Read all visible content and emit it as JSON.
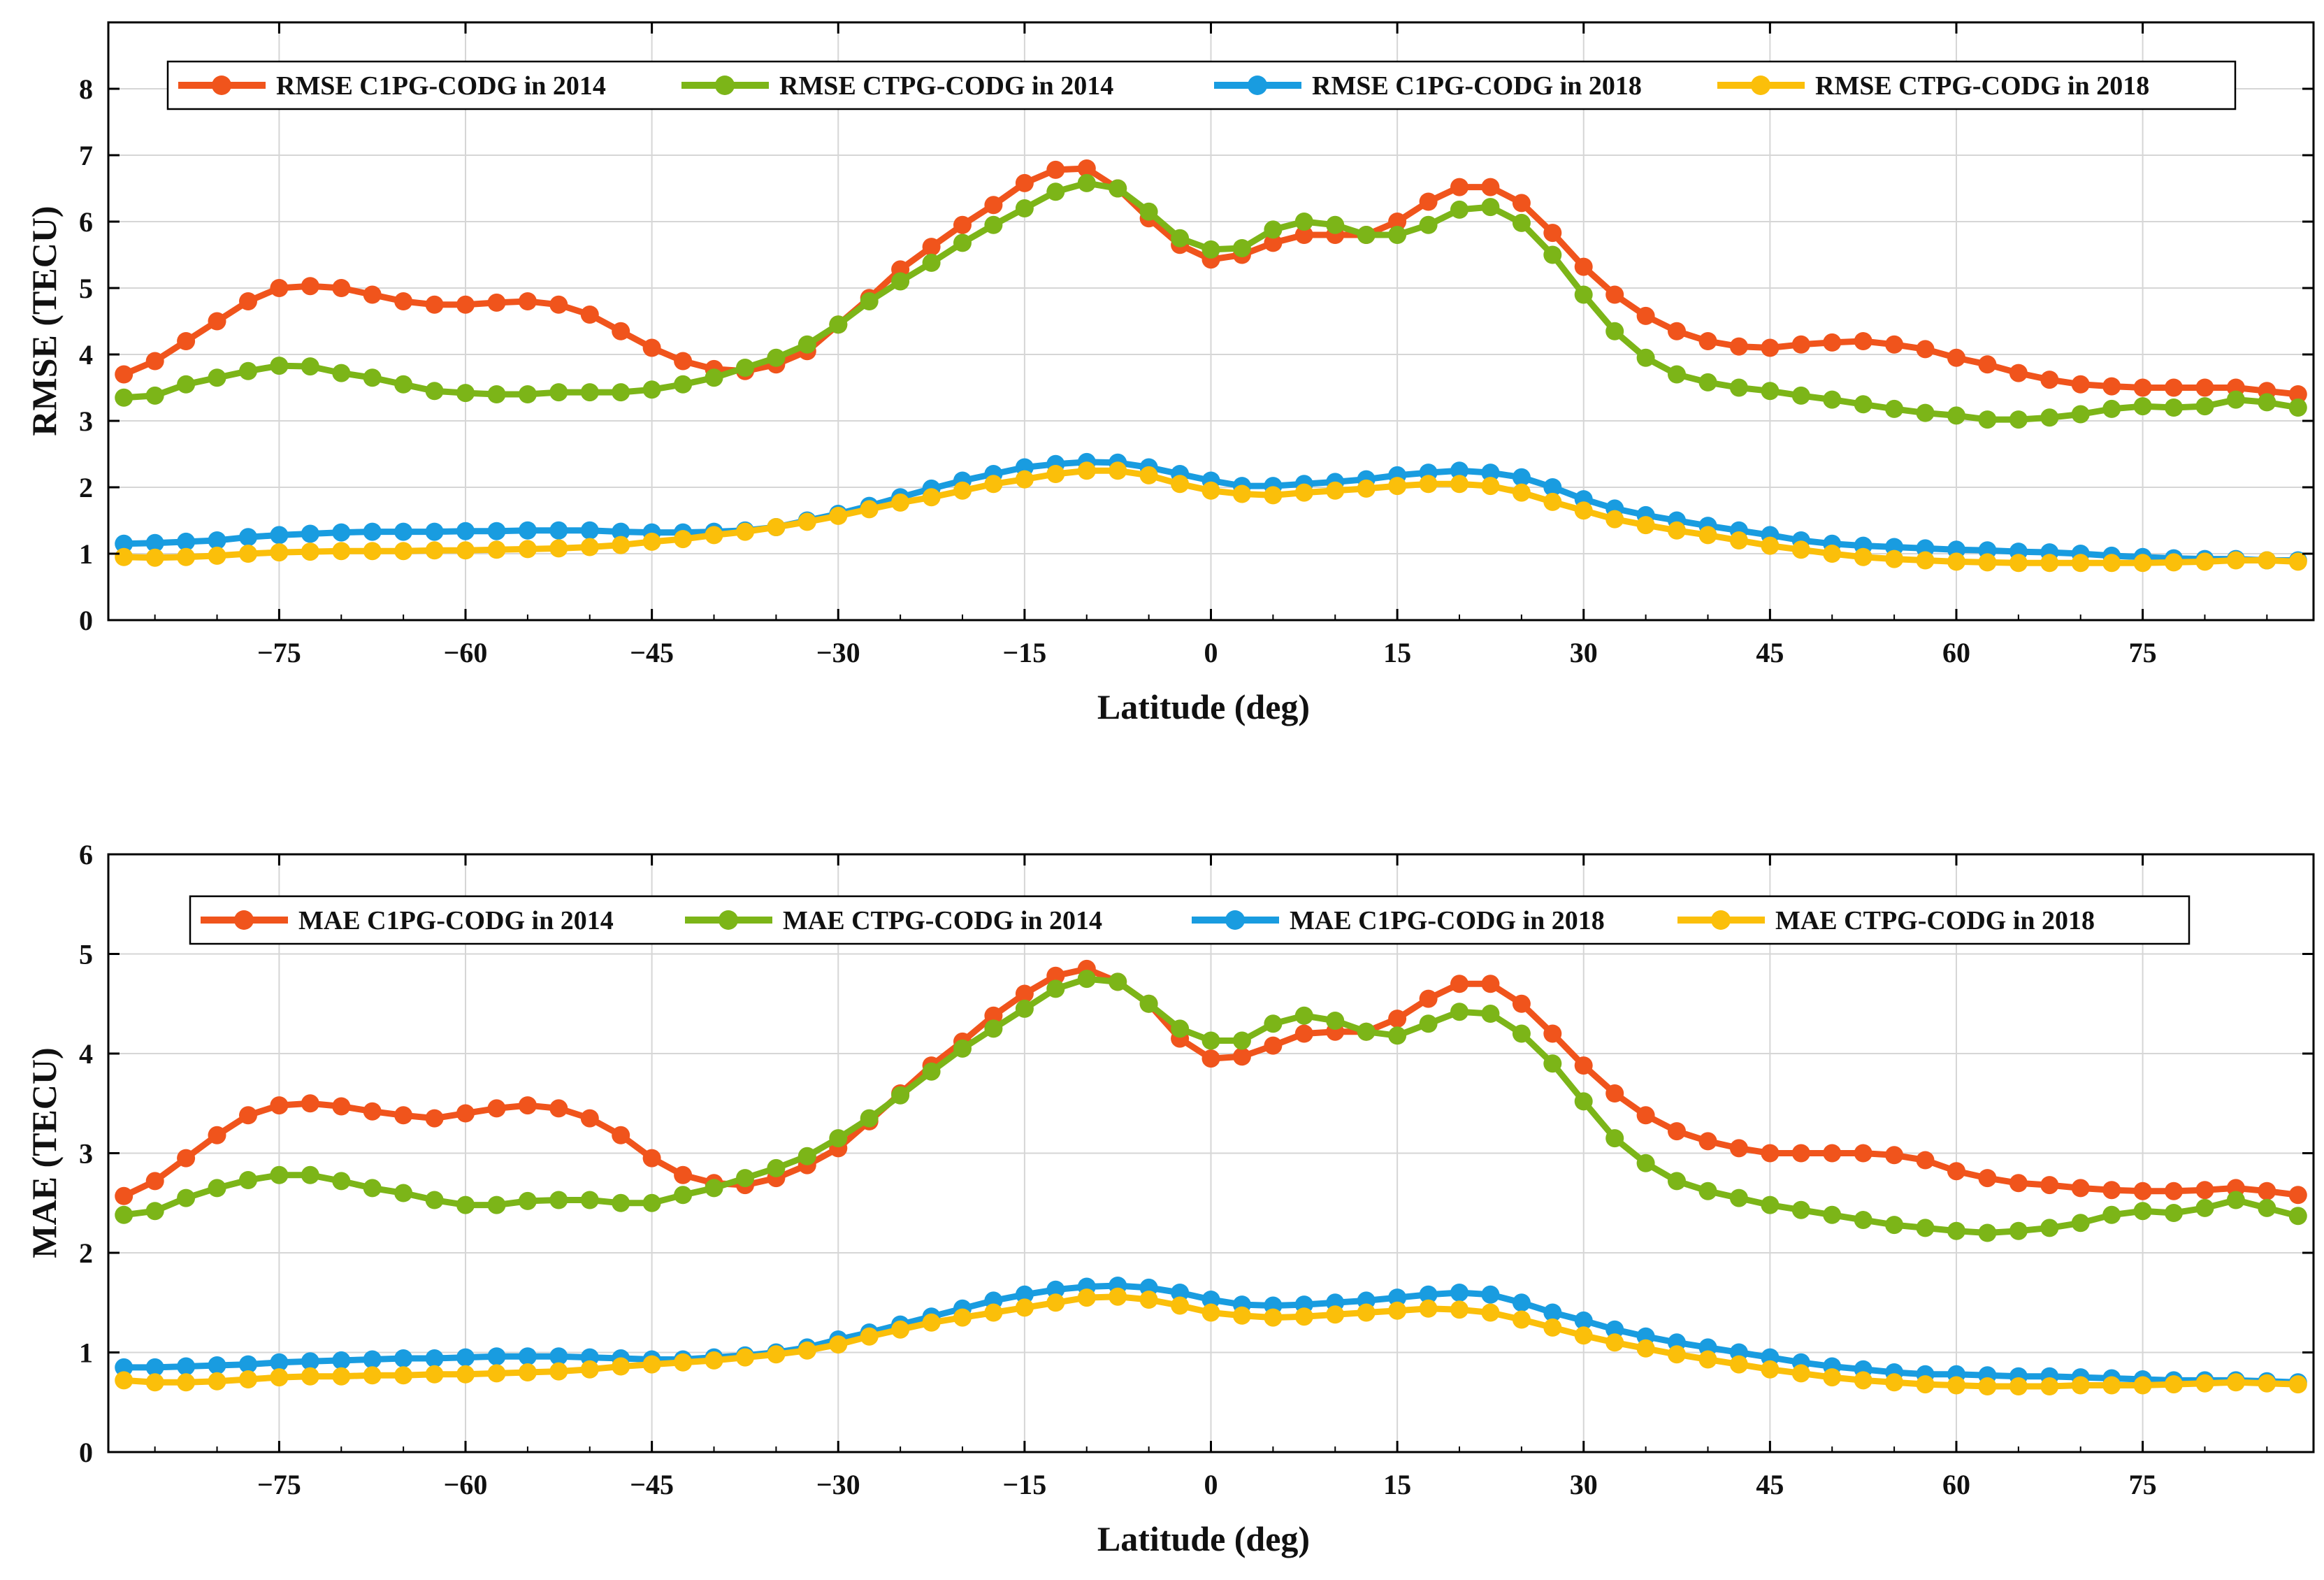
{
  "chart_data": [
    {
      "type": "line",
      "title": "",
      "xlabel": "Latitude (deg)",
      "ylabel": "RMSE (TECU)",
      "xlim": [
        -88.75,
        88.75
      ],
      "ylim": [
        0,
        9
      ],
      "xticks": [
        -75,
        -60,
        -45,
        -30,
        -15,
        0,
        15,
        30,
        45,
        60,
        75
      ],
      "xtick_labels": [
        "−75",
        "−60",
        "−45",
        "−30",
        "−15",
        "0",
        "15",
        "30",
        "45",
        "60",
        "75"
      ],
      "yticks": [
        0,
        1,
        2,
        3,
        4,
        5,
        6,
        7,
        8
      ],
      "ytick_labels": [
        "0",
        "1",
        "2",
        "3",
        "4",
        "5",
        "6",
        "7",
        "8"
      ],
      "grid": true,
      "legend_position": "top",
      "x": [
        -87.5,
        -85,
        -82.5,
        -80,
        -77.5,
        -75,
        -72.5,
        -70,
        -67.5,
        -65,
        -62.5,
        -60,
        -57.5,
        -55,
        -52.5,
        -50,
        -47.5,
        -45,
        -42.5,
        -40,
        -37.5,
        -35,
        -32.5,
        -30,
        -27.5,
        -25,
        -22.5,
        -20,
        -17.5,
        -15,
        -12.5,
        -10,
        -7.5,
        -5,
        -2.5,
        0,
        2.5,
        5,
        7.5,
        10,
        12.5,
        15,
        17.5,
        20,
        22.5,
        25,
        27.5,
        30,
        32.5,
        35,
        37.5,
        40,
        42.5,
        45,
        47.5,
        50,
        52.5,
        55,
        57.5,
        60,
        62.5,
        65,
        67.5,
        70,
        72.5,
        75,
        77.5,
        80,
        82.5,
        85,
        87.5
      ],
      "series": [
        {
          "name": "RMSE C1PG-CODG in 2014",
          "color": "#f0541c",
          "values": [
            3.7,
            3.9,
            4.2,
            4.5,
            4.8,
            5.0,
            5.03,
            5.0,
            4.9,
            4.8,
            4.75,
            4.75,
            4.78,
            4.8,
            4.75,
            4.6,
            4.35,
            4.1,
            3.9,
            3.78,
            3.75,
            3.85,
            4.05,
            4.45,
            4.85,
            5.28,
            5.62,
            5.95,
            6.25,
            6.58,
            6.78,
            6.8,
            6.5,
            6.05,
            5.65,
            5.43,
            5.5,
            5.68,
            5.8,
            5.8,
            5.8,
            6.0,
            6.3,
            6.52,
            6.52,
            6.28,
            5.83,
            5.32,
            4.9,
            4.58,
            4.35,
            4.2,
            4.12,
            4.1,
            4.15,
            4.18,
            4.2,
            4.15,
            4.08,
            3.95,
            3.85,
            3.72,
            3.62,
            3.55,
            3.52,
            3.5,
            3.5,
            3.5,
            3.5,
            3.45,
            3.4
          ]
        },
        {
          "name": "RMSE CTPG-CODG in 2014",
          "color": "#7cb518",
          "values": [
            3.35,
            3.38,
            3.55,
            3.65,
            3.75,
            3.83,
            3.82,
            3.72,
            3.65,
            3.55,
            3.45,
            3.42,
            3.4,
            3.4,
            3.43,
            3.43,
            3.43,
            3.47,
            3.55,
            3.65,
            3.8,
            3.95,
            4.15,
            4.45,
            4.8,
            5.1,
            5.38,
            5.68,
            5.95,
            6.2,
            6.45,
            6.58,
            6.5,
            6.15,
            5.75,
            5.58,
            5.6,
            5.88,
            6.0,
            5.95,
            5.8,
            5.8,
            5.95,
            6.18,
            6.22,
            5.98,
            5.5,
            4.9,
            4.35,
            3.95,
            3.7,
            3.58,
            3.5,
            3.45,
            3.38,
            3.32,
            3.25,
            3.18,
            3.12,
            3.08,
            3.02,
            3.02,
            3.05,
            3.1,
            3.18,
            3.22,
            3.2,
            3.22,
            3.32,
            3.28,
            3.2
          ]
        },
        {
          "name": "RMSE C1PG-CODG in 2018",
          "color": "#199ce0",
          "values": [
            1.15,
            1.16,
            1.18,
            1.2,
            1.25,
            1.28,
            1.3,
            1.32,
            1.33,
            1.33,
            1.33,
            1.34,
            1.34,
            1.35,
            1.35,
            1.35,
            1.33,
            1.32,
            1.32,
            1.33,
            1.35,
            1.4,
            1.5,
            1.6,
            1.72,
            1.85,
            1.98,
            2.1,
            2.2,
            2.3,
            2.35,
            2.38,
            2.37,
            2.3,
            2.2,
            2.1,
            2.02,
            2.02,
            2.05,
            2.08,
            2.12,
            2.18,
            2.22,
            2.25,
            2.22,
            2.15,
            2.0,
            1.82,
            1.68,
            1.58,
            1.5,
            1.42,
            1.35,
            1.28,
            1.2,
            1.15,
            1.12,
            1.1,
            1.08,
            1.06,
            1.05,
            1.03,
            1.02,
            1.0,
            0.97,
            0.95,
            0.93,
            0.92,
            0.92,
            0.9,
            0.9
          ]
        },
        {
          "name": "RMSE CTPG-CODG in 2018",
          "color": "#fbbf0a",
          "values": [
            0.95,
            0.94,
            0.95,
            0.97,
            1.0,
            1.02,
            1.03,
            1.04,
            1.04,
            1.04,
            1.05,
            1.05,
            1.06,
            1.07,
            1.08,
            1.1,
            1.13,
            1.18,
            1.22,
            1.28,
            1.33,
            1.4,
            1.48,
            1.57,
            1.67,
            1.77,
            1.85,
            1.95,
            2.05,
            2.12,
            2.2,
            2.25,
            2.25,
            2.18,
            2.05,
            1.95,
            1.9,
            1.88,
            1.92,
            1.95,
            1.98,
            2.02,
            2.05,
            2.05,
            2.02,
            1.92,
            1.78,
            1.65,
            1.52,
            1.43,
            1.35,
            1.28,
            1.2,
            1.12,
            1.06,
            1.0,
            0.95,
            0.92,
            0.9,
            0.88,
            0.87,
            0.86,
            0.86,
            0.86,
            0.86,
            0.86,
            0.87,
            0.88,
            0.9,
            0.9,
            0.88
          ]
        }
      ]
    },
    {
      "type": "line",
      "title": "",
      "xlabel": "Latitude (deg)",
      "ylabel": "MAE (TECU)",
      "xlim": [
        -88.75,
        88.75
      ],
      "ylim": [
        0,
        6
      ],
      "xticks": [
        -75,
        -60,
        -45,
        -30,
        -15,
        0,
        15,
        30,
        45,
        60,
        75
      ],
      "xtick_labels": [
        "−75",
        "−60",
        "−45",
        "−30",
        "−15",
        "0",
        "15",
        "30",
        "45",
        "60",
        "75"
      ],
      "yticks": [
        0,
        1,
        2,
        3,
        4,
        5,
        6
      ],
      "ytick_labels": [
        "0",
        "1",
        "2",
        "3",
        "4",
        "5",
        "6"
      ],
      "grid": true,
      "legend_position": "top",
      "x": [
        -87.5,
        -85,
        -82.5,
        -80,
        -77.5,
        -75,
        -72.5,
        -70,
        -67.5,
        -65,
        -62.5,
        -60,
        -57.5,
        -55,
        -52.5,
        -50,
        -47.5,
        -45,
        -42.5,
        -40,
        -37.5,
        -35,
        -32.5,
        -30,
        -27.5,
        -25,
        -22.5,
        -20,
        -17.5,
        -15,
        -12.5,
        -10,
        -7.5,
        -5,
        -2.5,
        0,
        2.5,
        5,
        7.5,
        10,
        12.5,
        15,
        17.5,
        20,
        22.5,
        25,
        27.5,
        30,
        32.5,
        35,
        37.5,
        40,
        42.5,
        45,
        47.5,
        50,
        52.5,
        55,
        57.5,
        60,
        62.5,
        65,
        67.5,
        70,
        72.5,
        75,
        77.5,
        80,
        82.5,
        85,
        87.5
      ],
      "series": [
        {
          "name": "MAE C1PG-CODG in 2014",
          "color": "#f0541c",
          "values": [
            2.57,
            2.72,
            2.95,
            3.18,
            3.38,
            3.48,
            3.5,
            3.47,
            3.42,
            3.38,
            3.35,
            3.4,
            3.45,
            3.48,
            3.45,
            3.35,
            3.18,
            2.95,
            2.78,
            2.7,
            2.68,
            2.75,
            2.88,
            3.05,
            3.32,
            3.6,
            3.88,
            4.12,
            4.38,
            4.6,
            4.78,
            4.85,
            4.72,
            4.5,
            4.15,
            3.95,
            3.97,
            4.08,
            4.2,
            4.22,
            4.22,
            4.35,
            4.55,
            4.7,
            4.7,
            4.5,
            4.2,
            3.88,
            3.6,
            3.38,
            3.22,
            3.12,
            3.05,
            3.0,
            3.0,
            3.0,
            3.0,
            2.98,
            2.93,
            2.82,
            2.75,
            2.7,
            2.68,
            2.65,
            2.63,
            2.62,
            2.62,
            2.63,
            2.65,
            2.62,
            2.58
          ]
        },
        {
          "name": "MAE CTPG-CODG in 2014",
          "color": "#7cb518",
          "values": [
            2.38,
            2.42,
            2.55,
            2.65,
            2.73,
            2.78,
            2.78,
            2.72,
            2.65,
            2.6,
            2.53,
            2.48,
            2.48,
            2.52,
            2.53,
            2.53,
            2.5,
            2.5,
            2.58,
            2.65,
            2.75,
            2.85,
            2.97,
            3.15,
            3.35,
            3.58,
            3.82,
            4.05,
            4.25,
            4.45,
            4.65,
            4.75,
            4.72,
            4.5,
            4.25,
            4.13,
            4.13,
            4.3,
            4.38,
            4.33,
            4.22,
            4.18,
            4.3,
            4.42,
            4.4,
            4.2,
            3.9,
            3.52,
            3.15,
            2.9,
            2.72,
            2.62,
            2.55,
            2.48,
            2.43,
            2.38,
            2.33,
            2.28,
            2.25,
            2.22,
            2.2,
            2.22,
            2.25,
            2.3,
            2.38,
            2.42,
            2.4,
            2.45,
            2.53,
            2.45,
            2.37
          ]
        },
        {
          "name": "MAE C1PG-CODG in 2018",
          "color": "#199ce0",
          "values": [
            0.85,
            0.85,
            0.86,
            0.87,
            0.88,
            0.9,
            0.91,
            0.92,
            0.93,
            0.94,
            0.94,
            0.95,
            0.96,
            0.96,
            0.96,
            0.95,
            0.94,
            0.93,
            0.93,
            0.95,
            0.97,
            1.0,
            1.05,
            1.13,
            1.2,
            1.28,
            1.36,
            1.44,
            1.52,
            1.58,
            1.63,
            1.66,
            1.67,
            1.65,
            1.6,
            1.53,
            1.48,
            1.47,
            1.48,
            1.5,
            1.52,
            1.55,
            1.58,
            1.6,
            1.58,
            1.5,
            1.4,
            1.32,
            1.23,
            1.16,
            1.1,
            1.05,
            1.0,
            0.95,
            0.9,
            0.86,
            0.83,
            0.8,
            0.78,
            0.78,
            0.77,
            0.76,
            0.76,
            0.75,
            0.74,
            0.73,
            0.72,
            0.72,
            0.72,
            0.71,
            0.7
          ]
        },
        {
          "name": "MAE CTPG-CODG in 2018",
          "color": "#fbbf0a",
          "values": [
            0.72,
            0.7,
            0.7,
            0.71,
            0.73,
            0.75,
            0.76,
            0.76,
            0.77,
            0.77,
            0.78,
            0.78,
            0.79,
            0.8,
            0.81,
            0.83,
            0.86,
            0.88,
            0.9,
            0.92,
            0.95,
            0.98,
            1.02,
            1.08,
            1.16,
            1.23,
            1.3,
            1.35,
            1.4,
            1.45,
            1.5,
            1.55,
            1.56,
            1.53,
            1.47,
            1.4,
            1.37,
            1.35,
            1.36,
            1.38,
            1.4,
            1.42,
            1.44,
            1.43,
            1.4,
            1.33,
            1.25,
            1.17,
            1.1,
            1.04,
            0.98,
            0.93,
            0.88,
            0.83,
            0.79,
            0.75,
            0.72,
            0.7,
            0.68,
            0.67,
            0.66,
            0.66,
            0.66,
            0.67,
            0.67,
            0.67,
            0.68,
            0.69,
            0.7,
            0.69,
            0.68
          ]
        }
      ]
    }
  ]
}
